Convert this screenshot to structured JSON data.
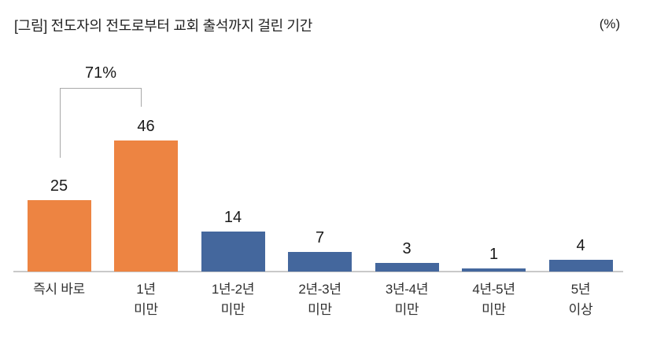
{
  "title": "[그림] 전도자의 전도로부터 교회 출석까지 걸린 기간",
  "unit_label": "(%)",
  "annotation": {
    "label": "71%"
  },
  "chart_data": {
    "type": "bar",
    "title": "[그림] 전도자의 전도로부터 교회 출석까지 걸린 기간",
    "categories": [
      "즉시 바로",
      "1년\n미만",
      "1년-2년\n미만",
      "2년-3년\n미만",
      "3년-4년\n미만",
      "4년-5년\n미만",
      "5년\n이상"
    ],
    "values": [
      25,
      46,
      14,
      7,
      3,
      1,
      4
    ],
    "value_unit": "%",
    "bar_colors": [
      "#ED8442",
      "#ED8442",
      "#44679D",
      "#44679D",
      "#44679D",
      "#44679D",
      "#44679D"
    ],
    "accent_orange": "#ED8442",
    "accent_blue": "#44679D",
    "xlabel": "",
    "ylabel": "(%)",
    "ylim": [
      0,
      50
    ],
    "grid": false,
    "legend": false,
    "annotations": [
      {
        "text": "71%",
        "covers": [
          "즉시 바로",
          "1년 미만"
        ],
        "meaning": "sum of first two bars"
      }
    ]
  }
}
